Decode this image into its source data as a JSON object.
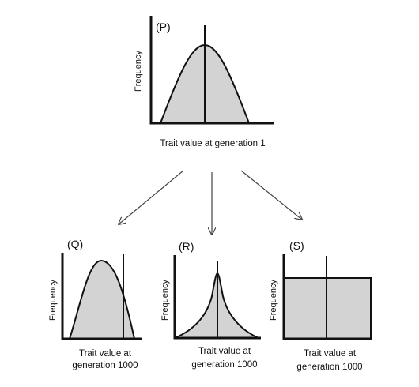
{
  "colors": {
    "fill": "#d3d3d3",
    "stroke": "#111111",
    "arrow": "#444444"
  },
  "panels": {
    "P": {
      "label": "(P)",
      "ylabel": "Frequency",
      "xlabel_line1": "Trait value at generation 1",
      "xlabel_line2": "",
      "shape": "bell"
    },
    "Q": {
      "label": "(Q)",
      "ylabel": "Frequency",
      "xlabel_line1": "Trait value at",
      "xlabel_line2": "generation 1000",
      "shape": "bell-shifted-left"
    },
    "R": {
      "label": "(R)",
      "ylabel": "Frequency",
      "xlabel_line1": "Trait value at",
      "xlabel_line2": "generation 1000",
      "shape": "narrow-peak"
    },
    "S": {
      "label": "(S)",
      "ylabel": "Frequency",
      "xlabel_line1": "Trait value at",
      "xlabel_line2": "generation 1000",
      "shape": "flat"
    }
  }
}
